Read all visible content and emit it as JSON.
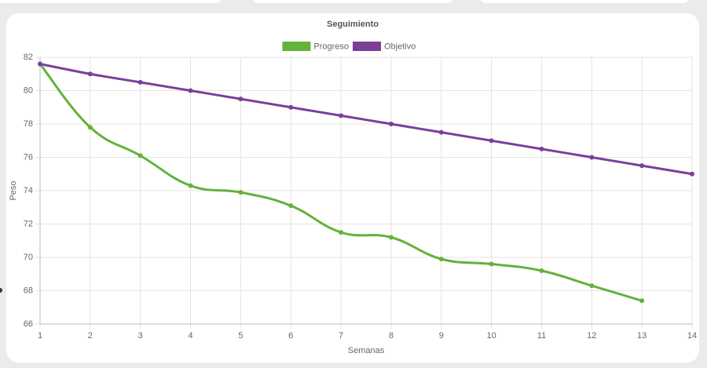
{
  "chart_data": {
    "type": "line",
    "title": "Seguimiento",
    "x_label": "Semanas",
    "y_label": "Peso",
    "x": [
      1,
      2,
      3,
      4,
      5,
      6,
      7,
      8,
      9,
      10,
      11,
      12,
      13,
      14
    ],
    "series": [
      {
        "name": "Progreso",
        "color": "#63b23b",
        "values": [
          81.6,
          77.8,
          76.1,
          74.3,
          73.9,
          73.1,
          71.5,
          71.2,
          69.9,
          69.6,
          69.2,
          68.3,
          67.4,
          null
        ]
      },
      {
        "name": "Objetivo",
        "color": "#7b3f98",
        "values": [
          81.6,
          81,
          80.5,
          80,
          79.5,
          79,
          78.5,
          78,
          77.5,
          77,
          76.5,
          76,
          75.5,
          75
        ]
      }
    ],
    "xlim": [
      1,
      14
    ],
    "xticks": [
      1,
      2,
      3,
      4,
      5,
      6,
      7,
      8,
      9,
      10,
      11,
      12,
      13,
      14
    ],
    "ylim": [
      66,
      82
    ],
    "yticks": [
      66,
      68,
      70,
      72,
      74,
      76,
      78,
      80,
      82
    ],
    "grid": true,
    "legend": "top"
  }
}
